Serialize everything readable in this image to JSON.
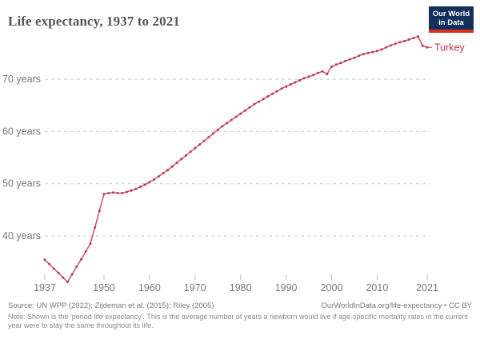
{
  "header": {
    "title": "Life expectancy, 1937 to 2021",
    "logo": {
      "line1": "Our World",
      "line2": "in Data"
    }
  },
  "chart_data": {
    "type": "line",
    "title": "Life expectancy, 1937 to 2021",
    "x": [
      1937,
      1938,
      1939,
      1940,
      1941,
      1942,
      1943,
      1944,
      1945,
      1946,
      1947,
      1948,
      1949,
      1950,
      1951,
      1952,
      1953,
      1954,
      1955,
      1956,
      1957,
      1958,
      1959,
      1960,
      1961,
      1962,
      1963,
      1964,
      1965,
      1966,
      1967,
      1968,
      1969,
      1970,
      1971,
      1972,
      1973,
      1974,
      1975,
      1976,
      1977,
      1978,
      1979,
      1980,
      1981,
      1982,
      1983,
      1984,
      1985,
      1986,
      1987,
      1988,
      1989,
      1990,
      1991,
      1992,
      1993,
      1994,
      1995,
      1996,
      1997,
      1998,
      1999,
      2000,
      2001,
      2002,
      2003,
      2004,
      2005,
      2006,
      2007,
      2008,
      2009,
      2010,
      2011,
      2012,
      2013,
      2014,
      2015,
      2016,
      2017,
      2018,
      2019,
      2020,
      2021
    ],
    "series": [
      {
        "name": "Turkey",
        "values": [
          35.4,
          34.6,
          33.7,
          32.9,
          32.0,
          31.2,
          32.6,
          34.1,
          35.5,
          37.0,
          38.5,
          41.6,
          44.8,
          48.0,
          48.2,
          48.3,
          48.2,
          48.2,
          48.4,
          48.7,
          49.0,
          49.4,
          49.8,
          50.3,
          50.8,
          51.4,
          52.0,
          52.6,
          53.3,
          54.0,
          54.7,
          55.4,
          56.1,
          56.8,
          57.5,
          58.2,
          58.9,
          59.6,
          60.3,
          61.0,
          61.6,
          62.2,
          62.8,
          63.4,
          64.0,
          64.6,
          65.2,
          65.7,
          66.2,
          66.7,
          67.2,
          67.7,
          68.2,
          68.6,
          69.0,
          69.4,
          69.8,
          70.2,
          70.5,
          70.8,
          71.2,
          71.5,
          71.0,
          72.4,
          72.8,
          73.1,
          73.5,
          73.8,
          74.1,
          74.5,
          74.8,
          75.0,
          75.2,
          75.4,
          75.7,
          76.1,
          76.5,
          76.8,
          77.1,
          77.3,
          77.6,
          77.9,
          78.2,
          76.4,
          76.1
        ]
      }
    ],
    "xlabel": "",
    "ylabel": "",
    "x_ticks": [
      1937,
      1950,
      1960,
      1970,
      1980,
      1990,
      2000,
      2010,
      2021
    ],
    "y_ticks": [
      {
        "value": 40,
        "label": "40 years"
      },
      {
        "value": 50,
        "label": "50 years"
      },
      {
        "value": 60,
        "label": "60 years"
      },
      {
        "value": 70,
        "label": "70 years"
      }
    ],
    "xlim": [
      1937,
      2021
    ],
    "ylim": [
      30,
      79
    ],
    "grid": true,
    "legend_position": "end-of-line-label"
  },
  "footer": {
    "source": "Source: UN WPP (2022); Zijdeman et al. (2015); Riley (2005)",
    "citation": "OurWorldInData.org/life-expectancy • CC BY",
    "note": "Note: Shown is the 'period life expectancy'. This is the average number of years a newborn would live if age-specific mortality rates in the current year were to stay the same throughout its life."
  },
  "colors": {
    "background": "#ffffff",
    "title": "#555555",
    "line": "#cf5a72",
    "marker": "#b73a53",
    "grid": "#cdcdcd",
    "tick": "#777777",
    "footer": "#777777",
    "logo_bg": "#12305b",
    "logo_accent": "#dc2f1e"
  }
}
